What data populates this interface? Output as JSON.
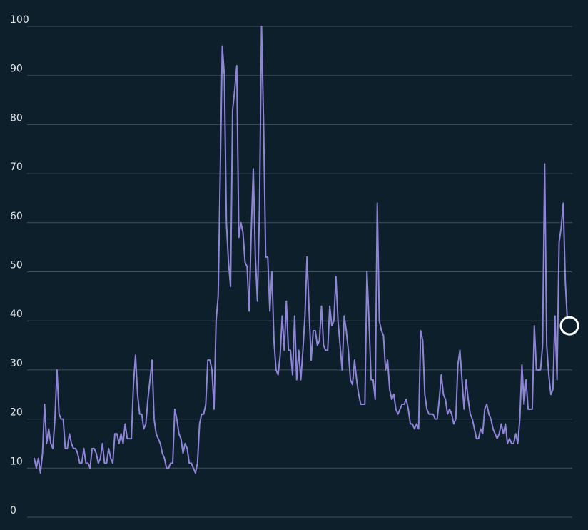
{
  "chart_data": {
    "type": "line",
    "title": "",
    "xlabel": "",
    "ylabel": "",
    "ylim": [
      0,
      100
    ],
    "yticks": [
      0,
      10,
      20,
      30,
      40,
      50,
      60,
      70,
      80,
      90,
      100
    ],
    "ytick_labels": [
      "0",
      "10",
      "20",
      "30",
      "40",
      "50",
      "60",
      "70",
      "80",
      "90",
      "100"
    ],
    "grid": true,
    "legend": "none",
    "colors": {
      "background": "#0e1f2c",
      "grid": "#3e505e",
      "tick_text": "#dfe6ec",
      "line": "#8f85d8",
      "end_marker": "#ffffff"
    },
    "end_marker": "circle",
    "series": [
      {
        "values": [
          12,
          10,
          12,
          9,
          13,
          23,
          15,
          18,
          15,
          14,
          20,
          30,
          21,
          20,
          20,
          14,
          14,
          17,
          15,
          14,
          14,
          13,
          11,
          11,
          14,
          11,
          11,
          10,
          14,
          14,
          13,
          11,
          12,
          15,
          11,
          11,
          14,
          12,
          11,
          17,
          17,
          15,
          17,
          15,
          19,
          16,
          16,
          16,
          27,
          33,
          25,
          21,
          21,
          18,
          19,
          24,
          28,
          32,
          20,
          17,
          16,
          15,
          13,
          12,
          10,
          10,
          11,
          11,
          22,
          20,
          17,
          16,
          13,
          15,
          14,
          11,
          11,
          10,
          9,
          11,
          19,
          21,
          21,
          23,
          32,
          32,
          30,
          22,
          40,
          45,
          70,
          96,
          90,
          60,
          52,
          47,
          83,
          87,
          92,
          57,
          60,
          58,
          52,
          51,
          42,
          58,
          71,
          53,
          44,
          63,
          100,
          80,
          53,
          53,
          42,
          50,
          36,
          30,
          29,
          33,
          41,
          34,
          44,
          34,
          34,
          29,
          41,
          28,
          34,
          28,
          34,
          41,
          53,
          42,
          32,
          38,
          38,
          35,
          36,
          43,
          35,
          34,
          34,
          43,
          39,
          40,
          49,
          40,
          35,
          30,
          41,
          38,
          34,
          28,
          27,
          32,
          28,
          25,
          23,
          23,
          23,
          50,
          40,
          28,
          28,
          24,
          64,
          40,
          38,
          37,
          30,
          32,
          26,
          24,
          25,
          22,
          21,
          22,
          23,
          23,
          24,
          22,
          19,
          19,
          18,
          19,
          18,
          38,
          36,
          25,
          22,
          21,
          21,
          21,
          20,
          20,
          24,
          29,
          25,
          24,
          21,
          22,
          21,
          19,
          20,
          31,
          34,
          28,
          22,
          28,
          24,
          21,
          20,
          18,
          16,
          16,
          18,
          17,
          22,
          23,
          21,
          20,
          18,
          17,
          16,
          17,
          19,
          17,
          19,
          15,
          16,
          15,
          15,
          17,
          15,
          20,
          31,
          23,
          28,
          22,
          22,
          22,
          39,
          30,
          30,
          30,
          35,
          72,
          35,
          29,
          25,
          26,
          41,
          28,
          56,
          59,
          64,
          48,
          40,
          39
        ]
      }
    ]
  }
}
